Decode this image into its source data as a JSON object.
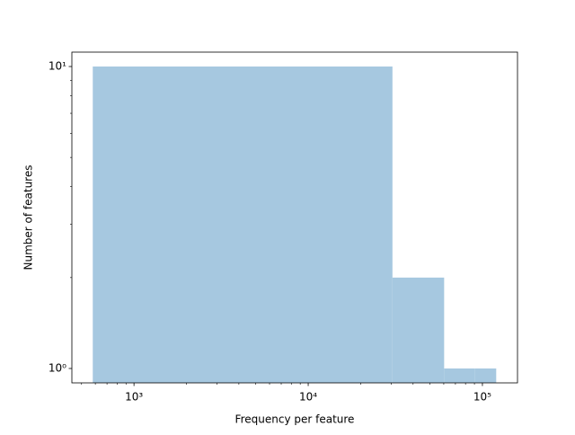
{
  "chart_data": {
    "type": "histogram",
    "xlabel": "Frequency per feature",
    "ylabel": "Number of features",
    "bins": [
      580,
      30450,
      60300,
      90200,
      120000
    ],
    "values": [
      10,
      2,
      1,
      1
    ],
    "color": "#a6c8e0",
    "xscale": "log",
    "yscale": "log",
    "xlim": [
      440,
      159000
    ],
    "ylim": [
      0.896,
      11.16
    ],
    "xticks": [
      {
        "value": 1000,
        "label": "10³"
      },
      {
        "value": 10000,
        "label": "10⁴"
      },
      {
        "value": 100000,
        "label": "10⁵"
      }
    ],
    "yticks": [
      {
        "value": 1,
        "label": "10⁰"
      },
      {
        "value": 10,
        "label": "10¹"
      }
    ],
    "minor_xticks": [
      500,
      600,
      700,
      800,
      900,
      2000,
      3000,
      4000,
      5000,
      6000,
      7000,
      8000,
      9000,
      20000,
      30000,
      40000,
      50000,
      60000,
      70000,
      80000,
      90000
    ],
    "minor_yticks": [
      2,
      3,
      4,
      5,
      6,
      7,
      8,
      9
    ]
  }
}
